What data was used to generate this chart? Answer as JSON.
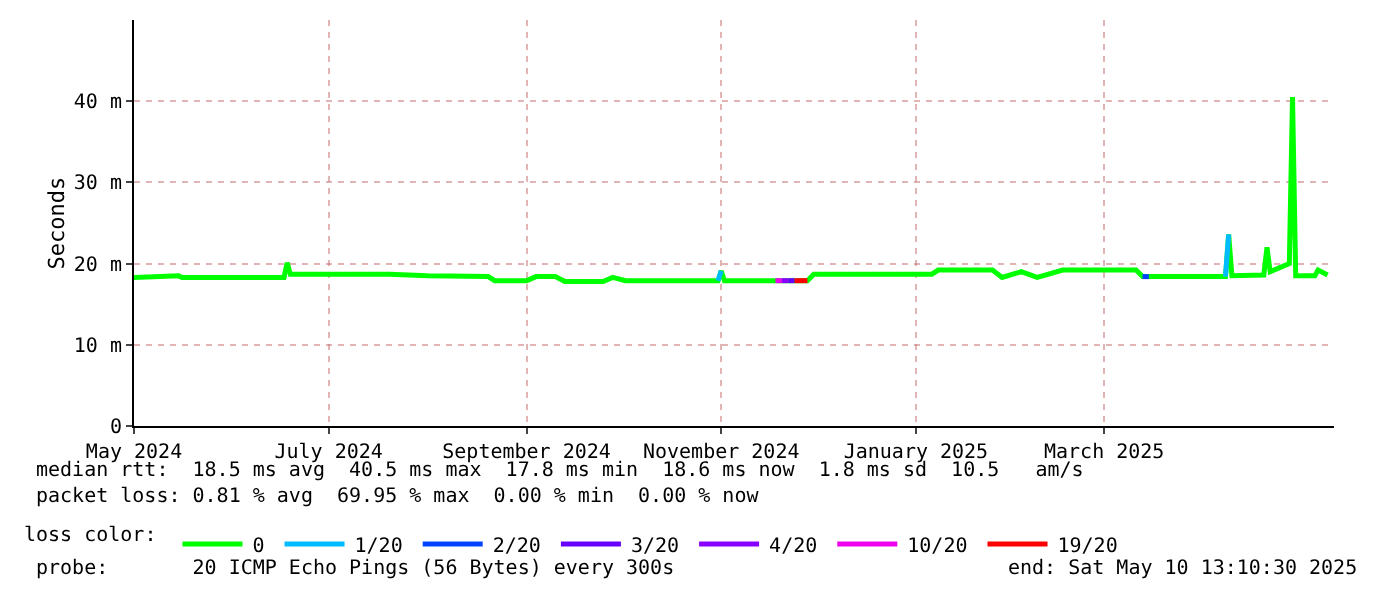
{
  "chart_data": {
    "type": "line",
    "ylabel": "Seconds",
    "legend_title": "loss color:",
    "x": [
      "2024-05-01",
      "2024-05-15",
      "2024-05-16",
      "2024-06-17",
      "2024-06-18",
      "2024-06-19",
      "2024-07-20",
      "2024-08-01",
      "2024-08-20",
      "2024-08-22",
      "2024-09-01",
      "2024-09-04",
      "2024-09-10",
      "2024-09-13",
      "2024-09-25",
      "2024-09-28",
      "2024-10-02",
      "2024-10-31",
      "2024-11-01",
      "2024-11-02",
      "2024-11-28",
      "2024-11-30",
      "2025-01-06",
      "2025-01-08",
      "2025-01-25",
      "2025-01-28",
      "2025-02-03",
      "2025-02-08",
      "2025-02-16",
      "2025-03-11",
      "2025-03-13",
      "2025-04-08",
      "2025-04-09",
      "2025-04-10",
      "2025-04-20",
      "2025-04-21",
      "2025-04-22",
      "2025-04-28",
      "2025-04-29",
      "2025-04-30",
      "2025-05-06",
      "2025-05-07",
      "2025-05-10"
    ],
    "series": [
      {
        "name": "0",
        "color": "#00ff00",
        "values": [
          18.3,
          18.5,
          18.3,
          18.3,
          20.1,
          18.7,
          18.7,
          18.5,
          18.4,
          17.9,
          17.9,
          18.4,
          18.4,
          17.8,
          17.8,
          18.3,
          17.9,
          17.9,
          19.1,
          17.9,
          17.9,
          18.7,
          18.7,
          19.2,
          19.2,
          18.3,
          19.0,
          18.3,
          19.2,
          19.2,
          18.4,
          18.4,
          23.6,
          18.5,
          18.6,
          22.0,
          19.0,
          20.0,
          40.5,
          18.5,
          18.5,
          19.2,
          18.6
        ]
      },
      {
        "name": "1/20",
        "color": "#00bbff",
        "x": [
          "2024-10-31",
          "2024-11-01",
          "2025-01-01",
          "2025-04-08",
          "2025-04-09"
        ],
        "values": [
          17.9,
          19.1,
          null,
          18.4,
          23.6
        ]
      },
      {
        "name": "2/20",
        "color": "#0044ff",
        "x": [
          "2025-03-13",
          "2025-03-15"
        ],
        "values": [
          18.4,
          18.4
        ]
      },
      {
        "name": "3/20",
        "color": "#6600ff",
        "x": [
          "2024-11-22",
          "2024-11-24"
        ],
        "values": [
          17.9,
          17.9
        ]
      },
      {
        "name": "4/20",
        "color": "#8800ff",
        "x": [
          "2024-11-20",
          "2024-11-22"
        ],
        "values": [
          17.9,
          17.9
        ]
      },
      {
        "name": "10/20",
        "color": "#ee00ee",
        "x": [
          "2024-11-18",
          "2024-11-20"
        ],
        "values": [
          17.9,
          17.9
        ]
      },
      {
        "name": "19/20",
        "color": "#ff0000",
        "x": [
          "2024-11-24",
          "2024-11-28"
        ],
        "values": [
          17.9,
          17.9
        ]
      }
    ],
    "xlim": [
      "2024-05-01",
      "2025-05-12"
    ],
    "xticks": [
      {
        "value": "2024-05-01",
        "label": "May 2024"
      },
      {
        "value": "2024-07-01",
        "label": "July 2024"
      },
      {
        "value": "2024-09-01",
        "label": "September 2024"
      },
      {
        "value": "2024-11-01",
        "label": "November 2024"
      },
      {
        "value": "2025-01-01",
        "label": "January 2025"
      },
      {
        "value": "2025-03-01",
        "label": "March 2025"
      }
    ],
    "ylim": [
      0,
      50
    ],
    "yticks": [
      0,
      {
        "value": 10,
        "label": "10 m"
      },
      {
        "value": 20,
        "label": "20 m"
      },
      {
        "value": 30,
        "label": "30 m"
      },
      {
        "value": 40,
        "label": "40 m"
      }
    ],
    "grid": true,
    "legend": "bottom",
    "marker": "none",
    "line_style": "solid",
    "annotations": [
      "median rtt:  18.5 ms avg  40.5 ms max  17.8 ms min  18.6 ms now  1.8 ms sd  10.5   am/s",
      "packet loss: 0.81 % avg  69.95 % max  0.00 % min  0.00 % now",
      "probe:       20 ICMP Echo Pings (56 Bytes) every 300s",
      "end: Sat May 10 13:10:30 2025"
    ]
  }
}
